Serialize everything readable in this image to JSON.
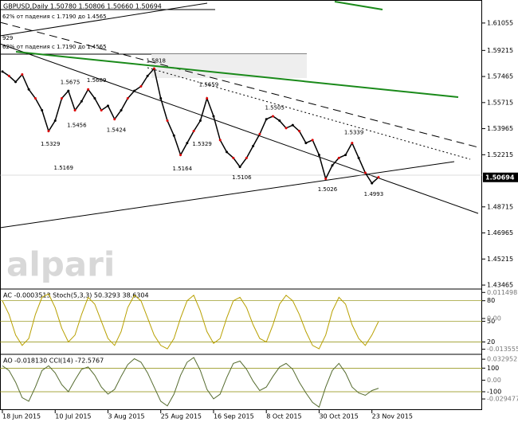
{
  "chart_data": [
    {
      "type": "line",
      "title": "GBPUSD,Daily  1.50780 1.50806 1.50660 1.50694",
      "color": "#000000",
      "categories": [
        "18 Jun 2015",
        null,
        null,
        null,
        null,
        null,
        null,
        null,
        "10 Jul 2015",
        null,
        null,
        null,
        null,
        null,
        null,
        null,
        "3 Aug 2015",
        null,
        null,
        null,
        null,
        null,
        null,
        null,
        "25 Aug 2015",
        null,
        null,
        null,
        null,
        null,
        null,
        null,
        "16 Sep 2015",
        null,
        null,
        null,
        null,
        null,
        null,
        null,
        "8 Oct 2015",
        null,
        null,
        null,
        null,
        null,
        null,
        null,
        "30 Oct 2015",
        null,
        null,
        null,
        null,
        null,
        null,
        null,
        "23 Nov 2015",
        null
      ],
      "values": [
        1.578,
        1.575,
        1.571,
        1.576,
        1.566,
        1.56,
        1.552,
        1.538,
        1.545,
        1.56,
        1.565,
        1.552,
        1.558,
        1.566,
        1.56,
        1.552,
        1.555,
        1.546,
        1.552,
        1.56,
        1.565,
        1.568,
        1.575,
        1.58,
        1.56,
        1.545,
        1.535,
        1.522,
        1.53,
        1.538,
        1.545,
        1.56,
        1.548,
        1.532,
        1.524,
        1.52,
        1.514,
        1.52,
        1.528,
        1.536,
        1.546,
        1.548,
        1.545,
        1.54,
        1.542,
        1.538,
        1.53,
        1.532,
        1.522,
        1.506,
        1.515,
        1.52,
        1.522,
        1.53,
        1.52,
        1.51,
        1.503,
        1.507
      ],
      "ylim": [
        1.432,
        1.626
      ],
      "yticks": [
        1.61055,
        1.59215,
        1.57465,
        1.55715,
        1.53965,
        1.52215,
        1.48715,
        1.46965,
        1.45215,
        1.43465
      ],
      "last_price": 1.50694,
      "notes": [
        "62% от падения с 1.7190 до 1.4565",
        "62% от падения с 1.7190 до 1.4565",
        "929"
      ],
      "watermark": "alpari",
      "annotations": [
        {
          "index": 23,
          "value": 1.5818
        },
        {
          "index": 10,
          "value": 1.5675
        },
        {
          "index": 14,
          "value": 1.5689
        },
        {
          "index": 11,
          "value": 1.5456
        },
        {
          "index": 17,
          "value": 1.5424
        },
        {
          "index": 7,
          "value": 1.5329
        },
        {
          "index": 9,
          "value": 1.5169
        },
        {
          "index": 31,
          "value": 1.5659
        },
        {
          "index": 30,
          "value": 1.5329
        },
        {
          "index": 27,
          "value": 1.5164
        },
        {
          "index": 36,
          "value": 1.5106
        },
        {
          "index": 41,
          "value": 1.5505
        },
        {
          "index": 49,
          "value": 1.5026
        },
        {
          "index": 53,
          "value": 1.5339
        },
        {
          "index": 56,
          "value": 1.4993
        }
      ]
    },
    {
      "type": "line",
      "title": "AC -0.0003513  Stoch(5,3,3) 50.3293 38.6304",
      "color": "#b8a000",
      "values": [
        80,
        60,
        30,
        15,
        25,
        60,
        85,
        90,
        70,
        40,
        20,
        30,
        60,
        85,
        75,
        50,
        25,
        15,
        35,
        70,
        88,
        80,
        55,
        30,
        15,
        10,
        25,
        55,
        80,
        88,
        65,
        35,
        18,
        25,
        55,
        80,
        85,
        70,
        45,
        25,
        20,
        45,
        75,
        88,
        80,
        60,
        35,
        15,
        10,
        30,
        65,
        85,
        75,
        45,
        25,
        15,
        30,
        50
      ],
      "ylim": [
        2,
        97
      ],
      "yticks": [
        20,
        50,
        80
      ],
      "y2lim": [
        -0.0158,
        0.013
      ],
      "y2ticks": [
        0.011498,
        {
          "value": 0,
          "label": "0.00"
        },
        -0.013555
      ]
    },
    {
      "type": "line",
      "title": "AO -0.018130  CCI(14) -72.5767",
      "color": "#556b2f",
      "values": [
        120,
        80,
        -20,
        -150,
        -180,
        -60,
        80,
        120,
        60,
        -40,
        -100,
        0,
        90,
        110,
        40,
        -60,
        -120,
        -80,
        30,
        130,
        180,
        150,
        60,
        -60,
        -180,
        -220,
        -120,
        40,
        150,
        190,
        80,
        -80,
        -160,
        -120,
        20,
        140,
        160,
        90,
        -10,
        -90,
        -60,
        30,
        110,
        140,
        90,
        -20,
        -110,
        -190,
        -230,
        -60,
        80,
        140,
        60,
        -60,
        -110,
        -130,
        -90,
        -70
      ],
      "ylim": [
        -255,
        217
      ],
      "yticks": [
        100,
        -100
      ],
      "y2lim": [
        -0.0469,
        0.0406
      ],
      "y2ticks": [
        0.032952,
        {
          "value": 0,
          "label": "0.00"
        },
        -0.029477
      ]
    }
  ]
}
